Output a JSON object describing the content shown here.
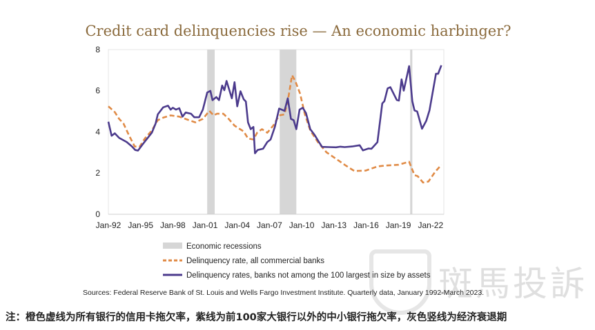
{
  "chart_data": {
    "type": "line",
    "title": "Credit card delinquencies rise — An economic harbinger?",
    "xlabel": "",
    "ylabel": "",
    "ylim": [
      0,
      8
    ],
    "xlim": [
      1992,
      2023.25
    ],
    "yticks": [
      "0",
      "2",
      "4",
      "6",
      "8"
    ],
    "ytick_values": [
      0,
      2,
      4,
      6,
      8
    ],
    "xticks": [
      "Jan-92",
      "Jan-95",
      "Jan-98",
      "Jan-01",
      "Jan-04",
      "Jan-07",
      "Jan-10",
      "Jan-13",
      "Jan-16",
      "Jan-19",
      "Jan-22"
    ],
    "xtick_values": [
      1992,
      1995,
      1998,
      2001,
      2004,
      2007,
      2010,
      2013,
      2016,
      2019,
      2022
    ],
    "grid": false,
    "recessions": [
      [
        2001.2,
        2001.9
      ],
      [
        2007.95,
        2009.5
      ],
      [
        2020.1,
        2020.3
      ]
    ],
    "series": [
      {
        "name": "Delinquency rate, all commercial banks",
        "color": "#e08a45",
        "style": "dashed",
        "x": [
          1992.0,
          1992.6,
          1993.0,
          1993.4,
          1993.9,
          1994.45,
          1994.9,
          1995.4,
          1996.05,
          1996.6,
          1997.1,
          1997.8,
          1998.6,
          1999.5,
          2000.1,
          2000.8,
          2001.4,
          2001.8,
          2002.1,
          2002.7,
          2003.2,
          2003.75,
          2004.6,
          2005.0,
          2005.5,
          2005.85,
          2006.3,
          2006.8,
          2007.35,
          2007.9,
          2008.4,
          2008.75,
          2009.1,
          2009.4,
          2009.85,
          2010.3,
          2010.8,
          2011.5,
          2012.3,
          2013.4,
          2014.0,
          2014.9,
          2015.95,
          2017.05,
          2017.7,
          2019.0,
          2020.0,
          2020.5,
          2020.8,
          2021.3,
          2021.8,
          2022.4,
          2023.0
        ],
        "values": [
          5.24,
          4.96,
          4.63,
          4.41,
          3.85,
          3.29,
          3.27,
          3.68,
          4.07,
          4.57,
          4.69,
          4.8,
          4.74,
          4.57,
          4.46,
          4.63,
          5.02,
          4.8,
          4.88,
          4.88,
          4.63,
          4.3,
          4.02,
          3.68,
          3.63,
          3.96,
          4.13,
          3.96,
          4.3,
          4.8,
          4.85,
          5.63,
          6.75,
          6.47,
          5.86,
          4.85,
          4.07,
          3.51,
          3.01,
          2.62,
          2.4,
          2.1,
          2.12,
          2.32,
          2.36,
          2.4,
          2.55,
          1.9,
          1.85,
          1.54,
          1.59,
          2.04,
          2.4
        ]
      },
      {
        "name": "Delinquency rates, banks not among the 100 largest in size by assets",
        "color": "#4b3a8c",
        "style": "solid",
        "x": [
          1992.0,
          1992.3,
          1992.6,
          1993.0,
          1993.7,
          1994.2,
          1994.5,
          1994.76,
          1995.2,
          1996.05,
          1996.4,
          1996.6,
          1997.1,
          1997.55,
          1997.8,
          1998.0,
          1998.3,
          1998.6,
          1998.9,
          1999.2,
          1999.7,
          2000.0,
          2000.45,
          2000.8,
          2001.2,
          2001.5,
          2001.7,
          2002.05,
          2002.3,
          2002.6,
          2002.8,
          2003.0,
          2003.5,
          2003.75,
          2004.0,
          2004.3,
          2004.6,
          2004.8,
          2005.0,
          2005.25,
          2005.5,
          2005.65,
          2005.9,
          2006.4,
          2006.8,
          2007.1,
          2007.5,
          2007.9,
          2008.4,
          2008.7,
          2009.0,
          2009.25,
          2009.5,
          2009.8,
          2010.1,
          2010.4,
          2010.8,
          2011.2,
          2011.6,
          2011.9,
          2012.55,
          2013.2,
          2013.6,
          2014.0,
          2014.7,
          2015.4,
          2015.7,
          2016.2,
          2016.5,
          2017.05,
          2017.5,
          2017.7,
          2018.0,
          2018.25,
          2018.85,
          2019.05,
          2019.3,
          2019.5,
          2020.0,
          2020.3,
          2020.5,
          2020.75,
          2021.2,
          2021.6,
          2021.9,
          2022.5,
          2022.7,
          2023.0
        ],
        "values": [
          4.49,
          3.81,
          3.93,
          3.71,
          3.51,
          3.29,
          3.12,
          3.09,
          3.4,
          3.96,
          4.41,
          4.85,
          5.19,
          5.27,
          5.08,
          5.17,
          5.08,
          5.15,
          4.74,
          4.94,
          4.88,
          4.71,
          4.71,
          5.08,
          5.91,
          5.99,
          5.54,
          5.69,
          5.54,
          6.25,
          6.02,
          6.47,
          5.63,
          6.41,
          5.24,
          5.97,
          5.58,
          5.47,
          4.46,
          4.13,
          4.24,
          2.96,
          3.12,
          3.18,
          3.51,
          3.63,
          4.24,
          5.13,
          5.02,
          5.63,
          4.63,
          4.57,
          4.13,
          5.08,
          5.17,
          4.91,
          4.13,
          3.85,
          3.51,
          3.27,
          3.26,
          3.25,
          3.28,
          3.26,
          3.29,
          3.35,
          3.1,
          3.19,
          3.18,
          3.5,
          5.38,
          5.49,
          6.11,
          6.17,
          5.55,
          5.52,
          6.55,
          6.0,
          7.19,
          5.49,
          5.04,
          4.99,
          4.15,
          4.54,
          5.04,
          6.82,
          6.82,
          7.23
        ]
      }
    ],
    "legend": {
      "placement": "bottom",
      "entries": [
        "Economic recessions",
        "Delinquency rate, all commercial banks",
        "Delinquency rates, banks not among the 100 largest in size by assets"
      ]
    },
    "source": "Sources: Federal Reserve Bank of St. Louis and Wells Fargo Investment Institute. Quarterly data, January 1992-March 2023."
  },
  "colors": {
    "recession": "#d6d6d6",
    "orange": "#e08a45",
    "purple": "#4b3a8c",
    "title": "#8a6a3c"
  },
  "note": "注：橙色虚线为所有银行的信用卡拖欠率，紫线为前100家大银行以外的中小银行拖欠率，灰色竖线为经济衰退期",
  "watermark": "斑馬投訴"
}
